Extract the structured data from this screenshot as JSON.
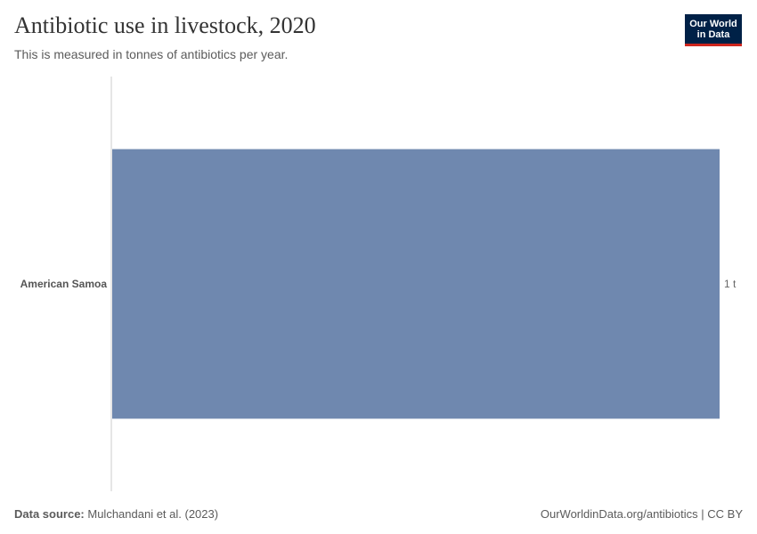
{
  "title": "Antibiotic use in livestock, 2020",
  "subtitle": "This is measured in tonnes of antibiotics per year.",
  "logo": {
    "line1": "Our World",
    "line2": "in Data"
  },
  "footer": {
    "source_label": "Data source:",
    "source_value": "Mulchandani et al. (2023)",
    "credit": "OurWorldinData.org/antibiotics | CC BY"
  },
  "colors": {
    "bar": "#6f88af",
    "axis": "#cccccc"
  },
  "chart_data": {
    "type": "bar",
    "orientation": "horizontal",
    "title": "Antibiotic use in livestock, 2020",
    "subtitle": "This is measured in tonnes of antibiotics per year.",
    "categories": [
      "American Samoa"
    ],
    "values": [
      1
    ],
    "value_labels": [
      "1 t"
    ],
    "xlim": [
      0,
      1
    ],
    "grid": false,
    "legend": "none"
  }
}
